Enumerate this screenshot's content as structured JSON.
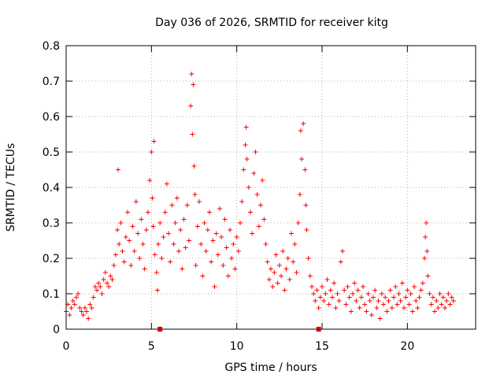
{
  "chart_data": {
    "type": "scatter",
    "title": "Day 036 of 2026, SRMTID for receiver kitg",
    "xlabel": "GPS time / hours",
    "ylabel": "SRMTID / TECUs",
    "xlim": [
      0,
      24
    ],
    "ylim": [
      0,
      0.8
    ],
    "xticks": [
      0,
      5,
      10,
      15,
      20
    ],
    "xtick_labels": [
      "0",
      "5",
      "10",
      "15",
      "20"
    ],
    "yticks": [
      0,
      0.1,
      0.2,
      0.3,
      0.4,
      0.5,
      0.6,
      0.7,
      0.8
    ],
    "ytick_labels": [
      "0",
      "0.1",
      "0.2",
      "0.3",
      "0.4",
      "0.5",
      "0.6",
      "0.7",
      "0.8"
    ],
    "grid": true,
    "marker": "+",
    "color": "#ff0000",
    "axis_markers_x": [
      5.5,
      14.8
    ],
    "series": [
      {
        "name": "SRMTID",
        "points": [
          [
            0.0,
            0.05
          ],
          [
            0.1,
            0.07
          ],
          [
            0.2,
            0.04
          ],
          [
            0.3,
            0.06
          ],
          [
            0.4,
            0.08
          ],
          [
            0.5,
            0.07
          ],
          [
            0.6,
            0.09
          ],
          [
            0.7,
            0.1
          ],
          [
            0.8,
            0.06
          ],
          [
            0.9,
            0.05
          ],
          [
            1.0,
            0.04
          ],
          [
            1.1,
            0.06
          ],
          [
            1.2,
            0.05
          ],
          [
            1.3,
            0.03
          ],
          [
            1.4,
            0.07
          ],
          [
            1.5,
            0.06
          ],
          [
            1.6,
            0.09
          ],
          [
            1.7,
            0.12
          ],
          [
            1.8,
            0.11
          ],
          [
            1.9,
            0.13
          ],
          [
            2.0,
            0.12
          ],
          [
            2.1,
            0.1
          ],
          [
            2.2,
            0.14
          ],
          [
            2.3,
            0.16
          ],
          [
            2.4,
            0.13
          ],
          [
            2.5,
            0.12
          ],
          [
            2.6,
            0.15
          ],
          [
            2.7,
            0.14
          ],
          [
            2.8,
            0.18
          ],
          [
            2.9,
            0.21
          ],
          [
            3.0,
            0.28
          ],
          [
            3.05,
            0.45
          ],
          [
            3.1,
            0.24
          ],
          [
            3.2,
            0.3
          ],
          [
            3.3,
            0.22
          ],
          [
            3.4,
            0.19
          ],
          [
            3.5,
            0.26
          ],
          [
            3.6,
            0.33
          ],
          [
            3.7,
            0.25
          ],
          [
            3.8,
            0.18
          ],
          [
            3.9,
            0.29
          ],
          [
            4.0,
            0.22
          ],
          [
            4.1,
            0.36
          ],
          [
            4.2,
            0.27
          ],
          [
            4.3,
            0.2
          ],
          [
            4.4,
            0.31
          ],
          [
            4.5,
            0.24
          ],
          [
            4.6,
            0.17
          ],
          [
            4.7,
            0.28
          ],
          [
            4.8,
            0.33
          ],
          [
            4.9,
            0.42
          ],
          [
            5.0,
            0.5
          ],
          [
            5.05,
            0.37
          ],
          [
            5.1,
            0.29
          ],
          [
            5.15,
            0.53
          ],
          [
            5.2,
            0.21
          ],
          [
            5.3,
            0.16
          ],
          [
            5.35,
            0.11
          ],
          [
            5.4,
            0.24
          ],
          [
            5.5,
            0.3
          ],
          [
            5.6,
            0.2
          ],
          [
            5.7,
            0.26
          ],
          [
            5.8,
            0.33
          ],
          [
            5.9,
            0.41
          ],
          [
            6.0,
            0.27
          ],
          [
            6.1,
            0.19
          ],
          [
            6.2,
            0.35
          ],
          [
            6.3,
            0.24
          ],
          [
            6.4,
            0.3
          ],
          [
            6.5,
            0.37
          ],
          [
            6.6,
            0.22
          ],
          [
            6.7,
            0.28
          ],
          [
            6.8,
            0.17
          ],
          [
            6.9,
            0.31
          ],
          [
            7.0,
            0.23
          ],
          [
            7.1,
            0.35
          ],
          [
            7.2,
            0.25
          ],
          [
            7.3,
            0.63
          ],
          [
            7.35,
            0.72
          ],
          [
            7.4,
            0.55
          ],
          [
            7.45,
            0.69
          ],
          [
            7.5,
            0.46
          ],
          [
            7.55,
            0.38
          ],
          [
            7.6,
            0.18
          ],
          [
            7.7,
            0.29
          ],
          [
            7.8,
            0.36
          ],
          [
            7.9,
            0.24
          ],
          [
            8.0,
            0.15
          ],
          [
            8.1,
            0.3
          ],
          [
            8.2,
            0.22
          ],
          [
            8.3,
            0.28
          ],
          [
            8.4,
            0.33
          ],
          [
            8.5,
            0.19
          ],
          [
            8.6,
            0.25
          ],
          [
            8.7,
            0.12
          ],
          [
            8.8,
            0.27
          ],
          [
            8.9,
            0.21
          ],
          [
            9.0,
            0.34
          ],
          [
            9.1,
            0.26
          ],
          [
            9.2,
            0.18
          ],
          [
            9.3,
            0.31
          ],
          [
            9.4,
            0.23
          ],
          [
            9.5,
            0.15
          ],
          [
            9.6,
            0.28
          ],
          [
            9.7,
            0.2
          ],
          [
            9.8,
            0.24
          ],
          [
            9.9,
            0.17
          ],
          [
            10.0,
            0.26
          ],
          [
            10.1,
            0.22
          ],
          [
            10.2,
            0.3
          ],
          [
            10.3,
            0.36
          ],
          [
            10.4,
            0.45
          ],
          [
            10.5,
            0.52
          ],
          [
            10.55,
            0.57
          ],
          [
            10.6,
            0.48
          ],
          [
            10.7,
            0.4
          ],
          [
            10.8,
            0.33
          ],
          [
            10.9,
            0.27
          ],
          [
            11.0,
            0.44
          ],
          [
            11.1,
            0.5
          ],
          [
            11.2,
            0.38
          ],
          [
            11.3,
            0.29
          ],
          [
            11.4,
            0.35
          ],
          [
            11.5,
            0.42
          ],
          [
            11.6,
            0.31
          ],
          [
            11.7,
            0.24
          ],
          [
            11.8,
            0.19
          ],
          [
            11.9,
            0.14
          ],
          [
            12.0,
            0.17
          ],
          [
            12.1,
            0.12
          ],
          [
            12.2,
            0.16
          ],
          [
            12.3,
            0.21
          ],
          [
            12.4,
            0.13
          ],
          [
            12.5,
            0.18
          ],
          [
            12.6,
            0.15
          ],
          [
            12.7,
            0.22
          ],
          [
            12.8,
            0.11
          ],
          [
            12.9,
            0.17
          ],
          [
            13.0,
            0.2
          ],
          [
            13.1,
            0.14
          ],
          [
            13.2,
            0.27
          ],
          [
            13.3,
            0.19
          ],
          [
            13.4,
            0.24
          ],
          [
            13.5,
            0.16
          ],
          [
            13.6,
            0.3
          ],
          [
            13.7,
            0.38
          ],
          [
            13.75,
            0.56
          ],
          [
            13.8,
            0.48
          ],
          [
            13.9,
            0.58
          ],
          [
            14.0,
            0.45
          ],
          [
            14.05,
            0.35
          ],
          [
            14.1,
            0.28
          ],
          [
            14.2,
            0.2
          ],
          [
            14.3,
            0.15
          ],
          [
            14.4,
            0.12
          ],
          [
            14.5,
            0.1
          ],
          [
            14.6,
            0.08
          ],
          [
            14.7,
            0.11
          ],
          [
            14.8,
            0.06
          ],
          [
            14.9,
            0.09
          ],
          [
            15.0,
            0.12
          ],
          [
            15.1,
            0.08
          ],
          [
            15.2,
            0.1
          ],
          [
            15.3,
            0.14
          ],
          [
            15.4,
            0.07
          ],
          [
            15.5,
            0.11
          ],
          [
            15.6,
            0.09
          ],
          [
            15.7,
            0.13
          ],
          [
            15.8,
            0.06
          ],
          [
            15.9,
            0.1
          ],
          [
            16.0,
            0.08
          ],
          [
            16.1,
            0.19
          ],
          [
            16.2,
            0.22
          ],
          [
            16.3,
            0.11
          ],
          [
            16.4,
            0.07
          ],
          [
            16.5,
            0.12
          ],
          [
            16.6,
            0.09
          ],
          [
            16.7,
            0.05
          ],
          [
            16.8,
            0.1
          ],
          [
            16.9,
            0.13
          ],
          [
            17.0,
            0.08
          ],
          [
            17.1,
            0.11
          ],
          [
            17.2,
            0.06
          ],
          [
            17.3,
            0.09
          ],
          [
            17.4,
            0.12
          ],
          [
            17.5,
            0.07
          ],
          [
            17.6,
            0.05
          ],
          [
            17.7,
            0.1
          ],
          [
            17.8,
            0.08
          ],
          [
            17.9,
            0.04
          ],
          [
            18.0,
            0.09
          ],
          [
            18.1,
            0.11
          ],
          [
            18.2,
            0.06
          ],
          [
            18.3,
            0.08
          ],
          [
            18.4,
            0.03
          ],
          [
            18.5,
            0.1
          ],
          [
            18.6,
            0.07
          ],
          [
            18.7,
            0.09
          ],
          [
            18.8,
            0.05
          ],
          [
            18.9,
            0.08
          ],
          [
            19.0,
            0.11
          ],
          [
            19.1,
            0.06
          ],
          [
            19.2,
            0.09
          ],
          [
            19.3,
            0.12
          ],
          [
            19.4,
            0.07
          ],
          [
            19.5,
            0.1
          ],
          [
            19.6,
            0.08
          ],
          [
            19.7,
            0.13
          ],
          [
            19.8,
            0.06
          ],
          [
            19.9,
            0.09
          ],
          [
            20.0,
            0.11
          ],
          [
            20.1,
            0.07
          ],
          [
            20.2,
            0.1
          ],
          [
            20.3,
            0.05
          ],
          [
            20.4,
            0.12
          ],
          [
            20.5,
            0.08
          ],
          [
            20.6,
            0.06
          ],
          [
            20.7,
            0.09
          ],
          [
            20.8,
            0.11
          ],
          [
            20.9,
            0.13
          ],
          [
            21.0,
            0.2
          ],
          [
            21.05,
            0.26
          ],
          [
            21.1,
            0.3
          ],
          [
            21.15,
            0.22
          ],
          [
            21.2,
            0.15
          ],
          [
            21.3,
            0.1
          ],
          [
            21.4,
            0.07
          ],
          [
            21.5,
            0.09
          ],
          [
            21.6,
            0.05
          ],
          [
            21.7,
            0.08
          ],
          [
            21.8,
            0.06
          ],
          [
            21.9,
            0.1
          ],
          [
            22.0,
            0.07
          ],
          [
            22.1,
            0.09
          ],
          [
            22.2,
            0.06
          ],
          [
            22.3,
            0.08
          ],
          [
            22.4,
            0.1
          ],
          [
            22.5,
            0.07
          ],
          [
            22.6,
            0.09
          ],
          [
            22.7,
            0.08
          ]
        ]
      }
    ]
  }
}
